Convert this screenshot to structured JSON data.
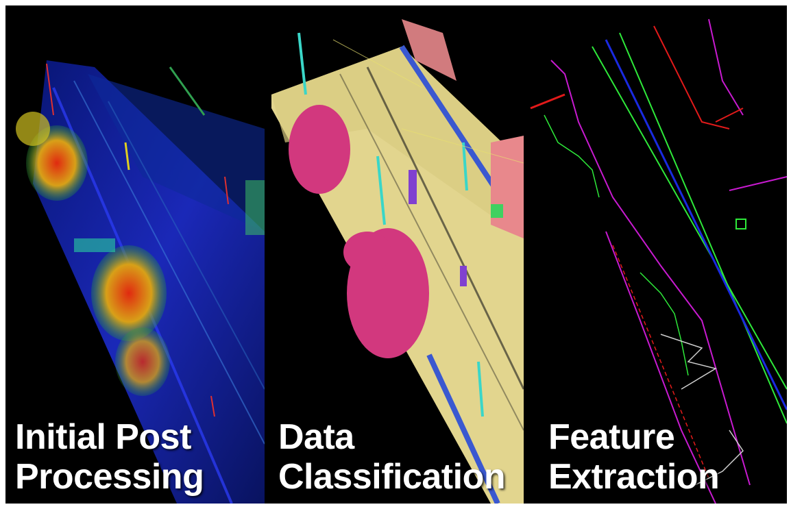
{
  "panels": [
    {
      "line1": "Initial Post",
      "line2": "Processing",
      "scene": "raw-point-cloud"
    },
    {
      "line1": "Data",
      "line2": "Classification",
      "scene": "classified-point-cloud"
    },
    {
      "line1": "Feature",
      "line2": "Extraction",
      "scene": "vector-features"
    }
  ],
  "colors": {
    "background": "#000000",
    "ground_raw": "#1f2fd8",
    "vegetation_raw": "#d83a1a",
    "ground_class": "#e2d58e",
    "vegetation_class": "#d2387e",
    "building_class": "#e8888c",
    "curb_class": "#3a58d0",
    "pole_class": "#3ad6c8",
    "lane_line": "#2eea3a",
    "curb_line": "#c81ad0",
    "edge_line": "#e21a1a",
    "centerline": "#1a2ae0"
  }
}
